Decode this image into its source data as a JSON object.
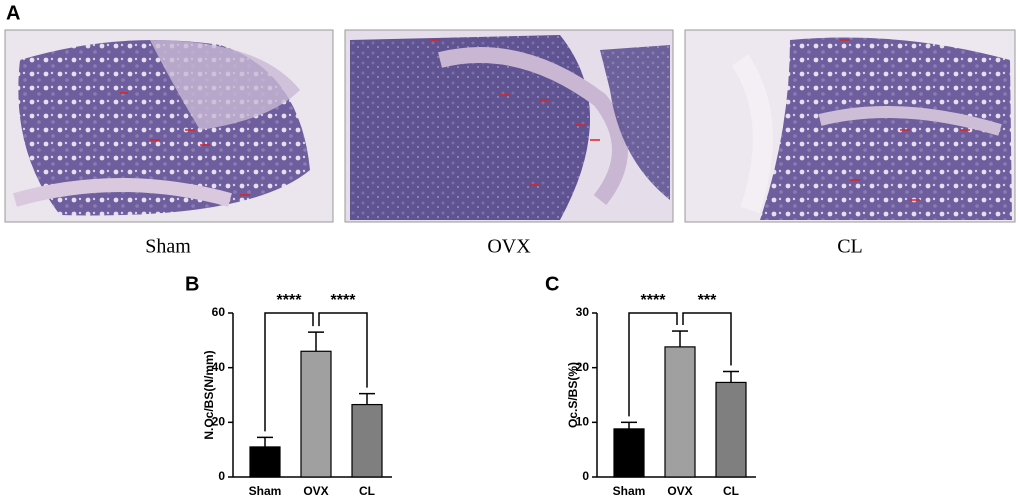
{
  "panel_a": {
    "label": "A",
    "captions": [
      "Sham",
      "OVX",
      "CL"
    ]
  },
  "chart_data": [
    {
      "type": "bar",
      "panel_label": "B",
      "ylabel": "N.Oc/BS(N/mm)",
      "categories": [
        "Sham",
        "OVX",
        "CL"
      ],
      "values": [
        11,
        46,
        26.5
      ],
      "errors": [
        3.5,
        7,
        4
      ],
      "colors": [
        "#000000",
        "#a0a0a0",
        "#7f7f7f"
      ],
      "ylim": [
        0,
        60
      ],
      "yticks": [
        0,
        20,
        40,
        60
      ],
      "significance": [
        {
          "text": "****",
          "from": 0,
          "to": 1
        },
        {
          "text": "****",
          "from": 1,
          "to": 2
        }
      ]
    },
    {
      "type": "bar",
      "panel_label": "C",
      "ylabel": "Oc.S/BS(%)",
      "categories": [
        "Sham",
        "OVX",
        "CL"
      ],
      "values": [
        8.8,
        23.8,
        17.3
      ],
      "errors": [
        1.2,
        2.9,
        2.0
      ],
      "colors": [
        "#000000",
        "#a0a0a0",
        "#7f7f7f"
      ],
      "ylim": [
        0,
        30
      ],
      "yticks": [
        0,
        10,
        20,
        30
      ],
      "significance": [
        {
          "text": "****",
          "from": 0,
          "to": 1
        },
        {
          "text": "***",
          "from": 1,
          "to": 2
        }
      ]
    }
  ]
}
